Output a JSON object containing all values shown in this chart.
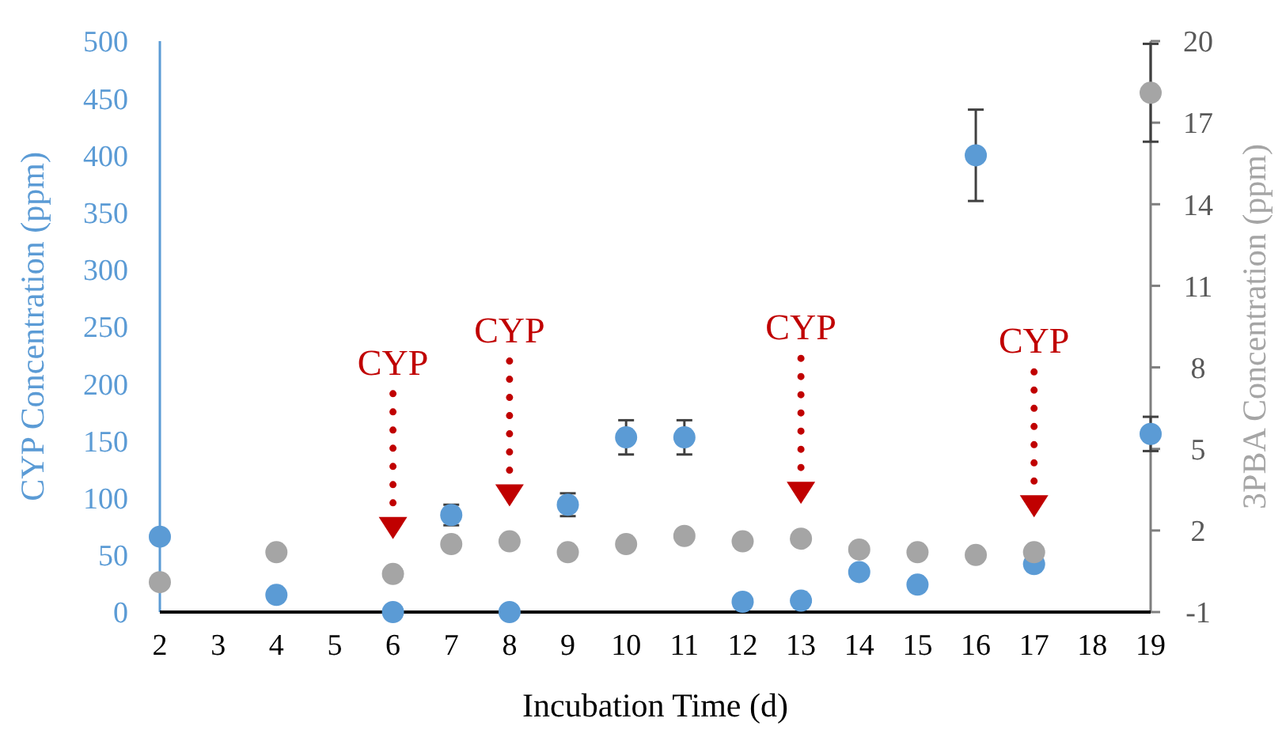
{
  "chart_data": {
    "type": "scatter",
    "xlabel": "Incubation Time (d)",
    "ylabel": "CYP Concentration (ppm)",
    "y2label": "3PBA Concentration (ppm)",
    "xlim": [
      2,
      19
    ],
    "xticks": [
      2,
      3,
      4,
      5,
      6,
      7,
      8,
      9,
      10,
      11,
      12,
      13,
      14,
      15,
      16,
      17,
      18,
      19
    ],
    "ylim": [
      0,
      500
    ],
    "yticks": [
      0,
      50,
      100,
      150,
      200,
      250,
      300,
      350,
      400,
      450,
      500
    ],
    "y2lim": [
      -1,
      20
    ],
    "y2ticks": [
      -1,
      2,
      5,
      8,
      11,
      14,
      17,
      20
    ],
    "marker": "circle",
    "series": [
      {
        "color": "#5b9bd5",
        "x": [
          2,
          4,
          6,
          7,
          8,
          9,
          10,
          11,
          12,
          13,
          14,
          15,
          16,
          17,
          19
        ],
        "values": [
          66,
          15,
          0,
          85,
          0,
          94,
          153,
          153,
          9,
          10,
          35,
          24,
          400,
          42,
          156
        ],
        "errors": [
          null,
          null,
          null,
          9,
          null,
          10,
          15,
          15,
          null,
          null,
          null,
          null,
          40,
          null,
          15
        ]
      },
      {
        "color": "#a5a5a5",
        "axis": "y2",
        "x": [
          2,
          4,
          6,
          7,
          8,
          9,
          10,
          11,
          12,
          13,
          14,
          15,
          16,
          17,
          19
        ],
        "values": [
          0.1,
          1.2,
          0.4,
          1.5,
          1.6,
          1.2,
          1.5,
          1.8,
          1.6,
          1.7,
          1.3,
          1.2,
          1.1,
          1.2,
          18.1
        ],
        "errors": [
          null,
          null,
          null,
          null,
          null,
          null,
          null,
          null,
          null,
          null,
          null,
          null,
          null,
          null,
          1.8
        ]
      }
    ],
    "annotations": [
      {
        "text": "CYP",
        "x": 6
      },
      {
        "text": "CYP",
        "x": 8
      },
      {
        "text": "CYP",
        "x": 13
      },
      {
        "text": "CYP",
        "x": 17
      }
    ]
  }
}
